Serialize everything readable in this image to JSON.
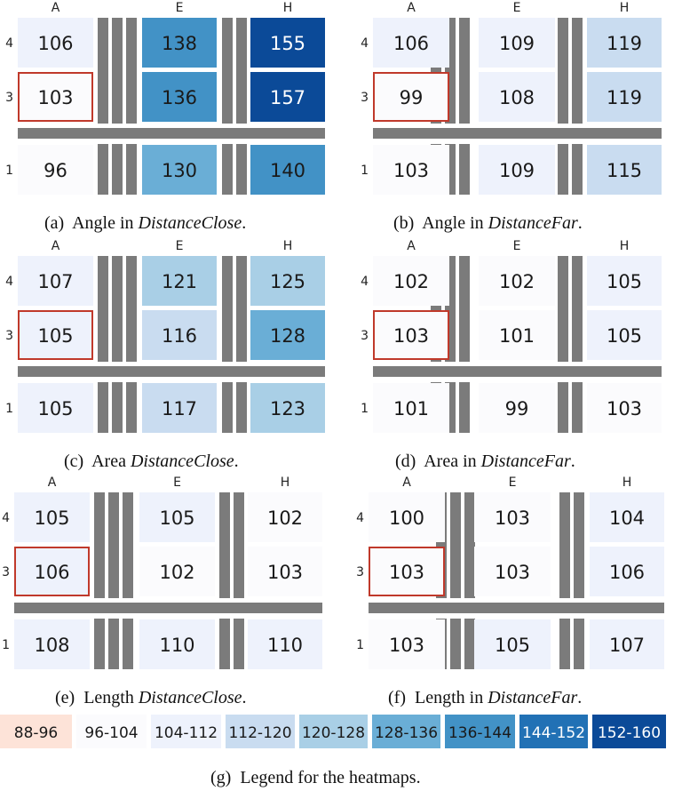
{
  "chart_data": [
    {
      "type": "heatmap",
      "panel": "a",
      "caption": {
        "prefix": "(a)",
        "text": "Angle in ",
        "emph": "DistanceClose",
        "suffix": "."
      },
      "columns": [
        "A",
        "E",
        "H"
      ],
      "rows": [
        "4",
        "3",
        "1"
      ],
      "values": [
        [
          106,
          138,
          155
        ],
        [
          103,
          136,
          157
        ],
        [
          96,
          130,
          140
        ]
      ],
      "highlight": {
        "row": 1,
        "col": 0
      }
    },
    {
      "type": "heatmap",
      "panel": "b",
      "caption": {
        "prefix": "(b)",
        "text": "Angle in ",
        "emph": "DistanceFar",
        "suffix": "."
      },
      "columns": [
        "A",
        "E",
        "H"
      ],
      "rows": [
        "4",
        "3",
        "1"
      ],
      "values": [
        [
          106,
          109,
          119
        ],
        [
          99,
          108,
          119
        ],
        [
          103,
          109,
          115
        ]
      ],
      "highlight": {
        "row": 1,
        "col": 0
      }
    },
    {
      "type": "heatmap",
      "panel": "c",
      "caption": {
        "prefix": "(c)",
        "text": "Area ",
        "emph": "DistanceClose",
        "suffix": "."
      },
      "columns": [
        "A",
        "E",
        "H"
      ],
      "rows": [
        "4",
        "3",
        "1"
      ],
      "values": [
        [
          107,
          121,
          125
        ],
        [
          105,
          116,
          128
        ],
        [
          105,
          117,
          123
        ]
      ],
      "highlight": {
        "row": 1,
        "col": 0
      }
    },
    {
      "type": "heatmap",
      "panel": "d",
      "caption": {
        "prefix": "(d)",
        "text": "Area in ",
        "emph": "DistanceFar",
        "suffix": "."
      },
      "columns": [
        "A",
        "E",
        "H"
      ],
      "rows": [
        "4",
        "3",
        "1"
      ],
      "values": [
        [
          102,
          102,
          105
        ],
        [
          103,
          101,
          105
        ],
        [
          101,
          99,
          103
        ]
      ],
      "highlight": {
        "row": 1,
        "col": 0
      }
    },
    {
      "type": "heatmap",
      "panel": "e",
      "caption": {
        "prefix": "(e)",
        "text": "Length ",
        "emph": "DistanceClose",
        "suffix": "."
      },
      "columns": [
        "A",
        "E",
        "H"
      ],
      "rows": [
        "4",
        "3",
        "1"
      ],
      "values": [
        [
          105,
          105,
          102
        ],
        [
          106,
          102,
          103
        ],
        [
          108,
          110,
          110
        ]
      ],
      "highlight": {
        "row": 1,
        "col": 0
      }
    },
    {
      "type": "heatmap",
      "panel": "f",
      "caption": {
        "prefix": "(f)",
        "text": "Length in ",
        "emph": "DistanceFar",
        "suffix": "."
      },
      "columns": [
        "A",
        "E",
        "H"
      ],
      "rows": [
        "4",
        "3",
        "1"
      ],
      "values": [
        [
          100,
          103,
          104
        ],
        [
          103,
          103,
          106
        ],
        [
          103,
          105,
          107
        ]
      ],
      "highlight": {
        "row": 1,
        "col": 0
      }
    }
  ],
  "legend": {
    "caption": {
      "prefix": "(g)",
      "text": "Legend for the heatmaps."
    },
    "bins": [
      {
        "label": "88-96",
        "min": 88,
        "max": 96,
        "color": "#fde3d8",
        "text_color": "#1a1a1a"
      },
      {
        "label": "96-104",
        "min": 96,
        "max": 104,
        "color": "#fbfbfd",
        "text_color": "#1a1a1a"
      },
      {
        "label": "104-112",
        "min": 104,
        "max": 112,
        "color": "#eef2fc",
        "text_color": "#1a1a1a"
      },
      {
        "label": "112-120",
        "min": 112,
        "max": 120,
        "color": "#c9dcf0",
        "text_color": "#1a1a1a"
      },
      {
        "label": "120-128",
        "min": 120,
        "max": 128,
        "color": "#a9cfe6",
        "text_color": "#1a1a1a"
      },
      {
        "label": "128-136",
        "min": 128,
        "max": 136,
        "color": "#6aaed6",
        "text_color": "#1a1a1a"
      },
      {
        "label": "136-144",
        "min": 136,
        "max": 144,
        "color": "#4292c6",
        "text_color": "#1a1a1a"
      },
      {
        "label": "144-152",
        "min": 144,
        "max": 152,
        "color": "#2171b5",
        "text_color": "#ffffff"
      },
      {
        "label": "152-160",
        "min": 152,
        "max": 160,
        "color": "#0b4a98",
        "text_color": "#ffffff"
      }
    ]
  },
  "colors": {
    "divider": "#7b7b7b",
    "highlight_border": "#c0392b"
  }
}
